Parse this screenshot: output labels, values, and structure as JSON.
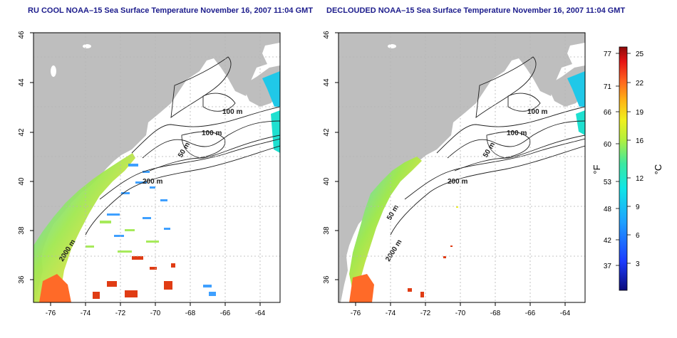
{
  "left_panel": {
    "title": "RU COOL NOAA–15 Sea Surface Temperature November 16, 2007 11:04 GMT",
    "x_ticks": [
      "-76",
      "-74",
      "-72",
      "-70",
      "-68",
      "-66",
      "-64"
    ],
    "y_ticks": [
      "36",
      "38",
      "40",
      "42",
      "44",
      "46"
    ],
    "contour_labels": [
      "100 m",
      "100 m",
      "50 m",
      "200 m",
      "2000 m"
    ]
  },
  "right_panel": {
    "title": "DECLOUDED NOAA–15 Sea Surface Temperature November 16, 2007 11:04 GMT",
    "x_ticks": [
      "-76",
      "-74",
      "-72",
      "-70",
      "-68",
      "-66",
      "-64"
    ],
    "y_ticks": [
      "36",
      "38",
      "40",
      "42",
      "44",
      "46"
    ],
    "contour_labels": [
      "100 m",
      "100 m",
      "50 m",
      "200 m",
      "50 m",
      "2000 m"
    ]
  },
  "colorbar": {
    "f_label": "°F",
    "c_label": "°C",
    "f_ticks": [
      "77",
      "71",
      "66",
      "60",
      "53",
      "48",
      "42",
      "37"
    ],
    "c_ticks": [
      "25",
      "22",
      "19",
      "16",
      "12",
      "9",
      "6",
      "3"
    ]
  },
  "colors": {
    "land": "#bebebe",
    "title": "#1c1c8c",
    "grid": "#b4b4b4"
  }
}
